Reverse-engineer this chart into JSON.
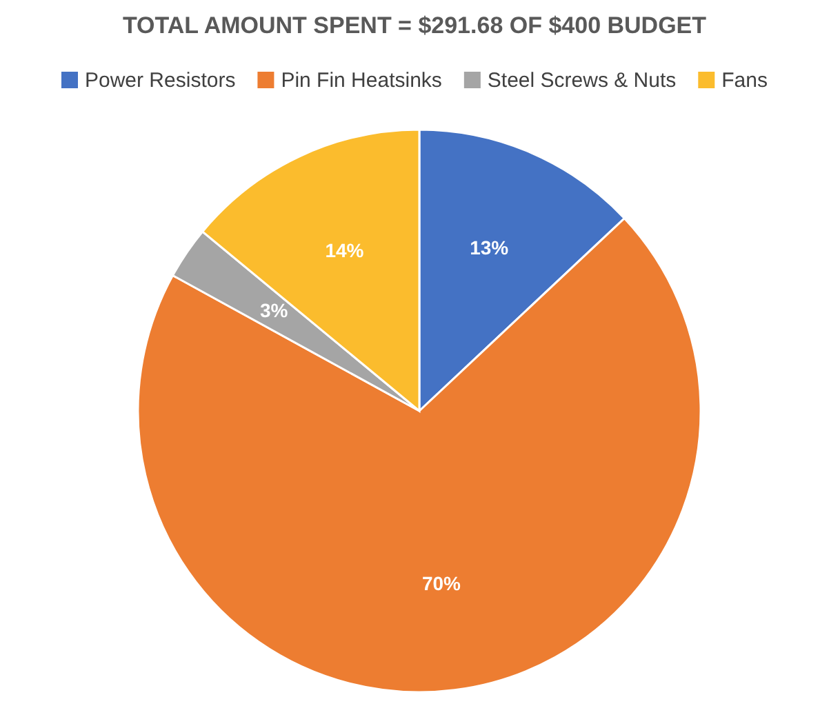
{
  "chart_data": {
    "type": "pie",
    "title": "TOTAL AMOUNT SPENT = $291.68 OF $400 BUDGET",
    "categories": [
      "Power Resistors",
      "Pin Fin Heatsinks",
      "Steel Screws & Nuts",
      "Fans"
    ],
    "values": [
      13,
      70,
      3,
      14
    ],
    "colors": [
      "#4472c4",
      "#ed7d31",
      "#a5a5a5",
      "#fbbc2d"
    ],
    "value_labels": [
      "13%",
      "70%",
      "3%",
      "14%"
    ],
    "legend": "top"
  }
}
